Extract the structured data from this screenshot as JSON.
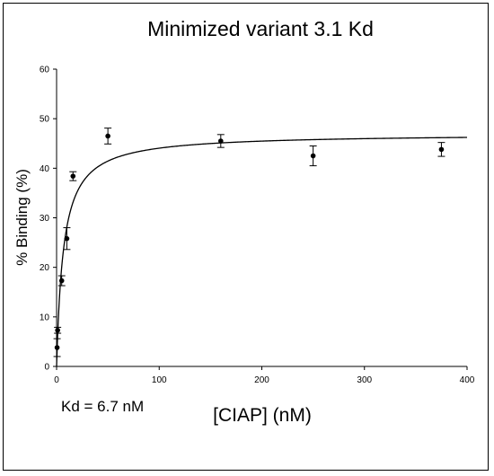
{
  "chart_data": {
    "type": "scatter",
    "title": "Minimized variant 3.1 Kd",
    "xlabel": "[CIAP] (nM)",
    "ylabel": "% Binding (%)",
    "annotation": "Kd = 6.7 nM",
    "xlim": [
      0,
      400
    ],
    "ylim": [
      0,
      60
    ],
    "xticks": [
      "0",
      "100",
      "200",
      "300",
      "400"
    ],
    "yticks": [
      "0",
      "10",
      "20",
      "30",
      "40",
      "50",
      "60"
    ],
    "grid": false,
    "legend": "none",
    "points": [
      {
        "x": 0.5,
        "y": 3.8,
        "err": 1.8
      },
      {
        "x": 1,
        "y": 7.3,
        "err": 0.6
      },
      {
        "x": 5,
        "y": 17.3,
        "err": 1.0
      },
      {
        "x": 10,
        "y": 25.8,
        "err": 2.2
      },
      {
        "x": 16,
        "y": 38.4,
        "err": 0.9
      },
      {
        "x": 50,
        "y": 46.5,
        "err": 1.6
      },
      {
        "x": 160,
        "y": 45.5,
        "err": 1.3
      },
      {
        "x": 250,
        "y": 42.5,
        "err": 2.0
      },
      {
        "x": 375,
        "y": 43.8,
        "err": 1.4
      }
    ],
    "fit": {
      "model": "one-site binding",
      "bmax": 47.0,
      "kd": 6.7
    }
  }
}
